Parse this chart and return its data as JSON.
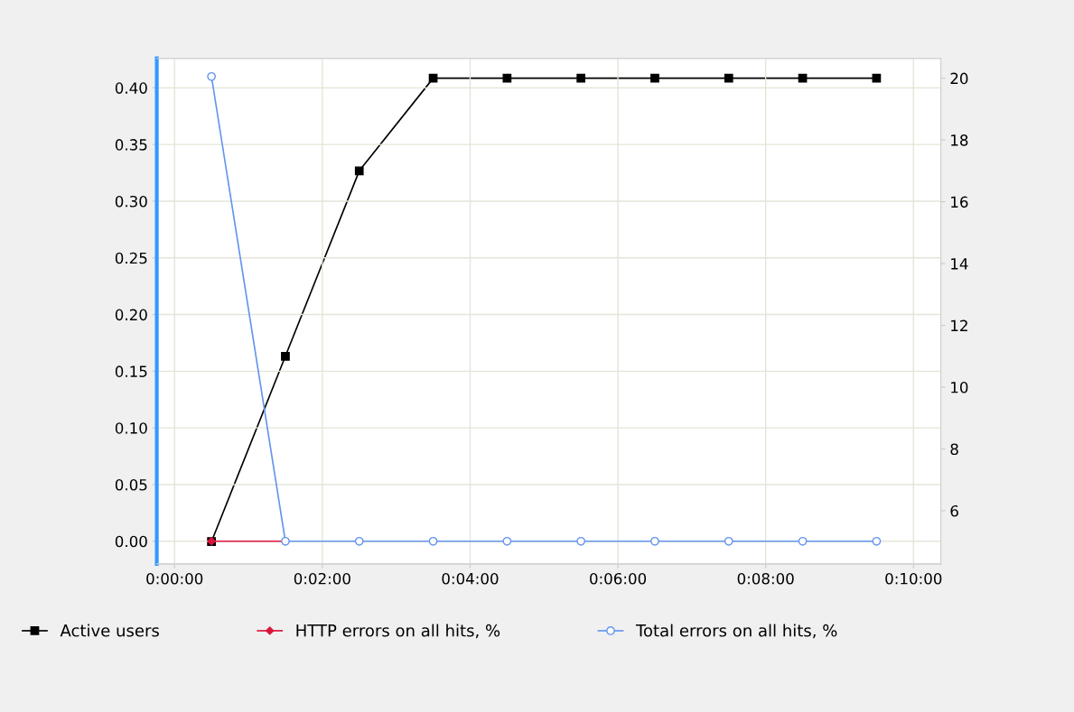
{
  "chart_data": {
    "type": "line",
    "x": [
      0.5,
      1.5,
      2.5,
      3.5,
      4.5,
      5.5,
      6.5,
      7.5,
      8.5,
      9.5
    ],
    "series": [
      {
        "name": "Active users",
        "color": "#000000",
        "axis": "y2",
        "marker": "square",
        "values": [
          5,
          11,
          17,
          20,
          20,
          20,
          20,
          20,
          20,
          20
        ]
      },
      {
        "name": "HTTP errors on all hits, %",
        "color": "#dc143c",
        "marker": "diamond",
        "values": [
          0,
          0,
          null,
          null,
          null,
          null,
          null,
          null,
          null,
          null
        ]
      },
      {
        "name": "Total errors on all hits, %",
        "color": "#6495ed",
        "marker": "circle",
        "values": [
          0.41,
          0,
          0,
          0,
          0,
          0,
          0,
          0,
          0,
          0
        ]
      }
    ],
    "xlim": [
      -0.24,
      10.37
    ],
    "xticks": [
      {
        "value": 0,
        "label": "0:00:00"
      },
      {
        "value": 2,
        "label": "0:02:00"
      },
      {
        "value": 4,
        "label": "0:04:00"
      },
      {
        "value": 6,
        "label": "0:06:00"
      },
      {
        "value": 8,
        "label": "0:08:00"
      },
      {
        "value": 10,
        "label": "0:10:00"
      }
    ],
    "ylim": [
      -0.02,
      0.426
    ],
    "yticks": [
      {
        "value": 0,
        "label": "0.00"
      },
      {
        "value": 0.05,
        "label": "0.05"
      },
      {
        "value": 0.1,
        "label": "0.10"
      },
      {
        "value": 0.15,
        "label": "0.15"
      },
      {
        "value": 0.2,
        "label": "0.20"
      },
      {
        "value": 0.25,
        "label": "0.25"
      },
      {
        "value": 0.3,
        "label": "0.30"
      },
      {
        "value": 0.35,
        "label": "0.35"
      },
      {
        "value": 0.4,
        "label": "0.40"
      }
    ],
    "y2lim": [
      4.28,
      20.64
    ],
    "y2ticks": [
      6,
      8,
      10,
      12,
      14,
      16,
      18,
      20
    ],
    "grid": true,
    "legend": "bottom",
    "line_style": "solid"
  }
}
